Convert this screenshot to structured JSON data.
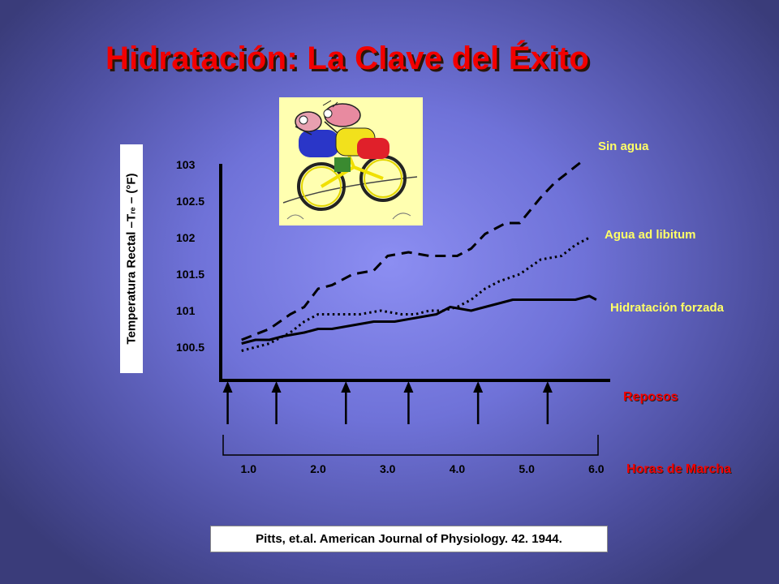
{
  "title": "Hidratación: La Clave del Éxito",
  "illustration": {
    "icon": "cyclist-illustration-icon",
    "background": "#ffffb0"
  },
  "chart_data": {
    "type": "line",
    "ylabel_main": "Temperatura Rectal –T",
    "ylabel_sub": "re",
    "ylabel_tail": " – (°F)",
    "yticks": [
      "103",
      "102.5",
      "102",
      "101.5",
      "101",
      "100.5"
    ],
    "ylim": [
      100.5,
      103
    ],
    "xticks": [
      "1.0",
      "2.0",
      "3.0",
      "4.0",
      "5.0",
      "6.0"
    ],
    "xlim": [
      0.6,
      6.2
    ],
    "xlabel": "Horas de Marcha",
    "rest_label": "Reposos",
    "rest_times": [
      0.7,
      1.4,
      2.4,
      3.3,
      4.3,
      5.3
    ],
    "grid": false,
    "series": [
      {
        "name": "Sin agua",
        "style": "dashed",
        "x": [
          0.9,
          1.3,
          1.6,
          1.8,
          2.0,
          2.2,
          2.5,
          2.8,
          3.0,
          3.3,
          3.6,
          3.8,
          4.0,
          4.2,
          4.4,
          4.7,
          4.9,
          5.2,
          5.4,
          5.6,
          5.8
        ],
        "y": [
          100.6,
          100.75,
          100.95,
          101.05,
          101.3,
          101.35,
          101.5,
          101.55,
          101.75,
          101.8,
          101.75,
          101.75,
          101.75,
          101.85,
          102.05,
          102.2,
          102.2,
          102.55,
          102.75,
          102.9,
          103.05
        ]
      },
      {
        "name": "Agua ad libitum",
        "style": "dotted",
        "x": [
          0.9,
          1.3,
          1.6,
          1.8,
          2.0,
          2.3,
          2.6,
          2.9,
          3.2,
          3.4,
          3.6,
          3.8,
          4.0,
          4.2,
          4.4,
          4.6,
          4.9,
          5.2,
          5.5,
          5.7,
          5.9
        ],
        "y": [
          100.45,
          100.55,
          100.7,
          100.85,
          100.95,
          100.95,
          100.95,
          101.0,
          100.95,
          100.95,
          101.0,
          101.0,
          101.05,
          101.15,
          101.3,
          101.4,
          101.5,
          101.7,
          101.75,
          101.9,
          102.0
        ]
      },
      {
        "name": "Hidratación forzada",
        "style": "solid",
        "x": [
          0.9,
          1.1,
          1.3,
          1.5,
          1.8,
          2.0,
          2.2,
          2.5,
          2.8,
          3.1,
          3.4,
          3.7,
          3.9,
          4.2,
          4.4,
          4.6,
          4.8,
          5.0,
          5.2,
          5.5,
          5.7,
          5.9,
          6.0
        ],
        "y": [
          100.55,
          100.6,
          100.6,
          100.65,
          100.7,
          100.75,
          100.75,
          100.8,
          100.85,
          100.85,
          100.9,
          100.95,
          101.05,
          101.0,
          101.05,
          101.1,
          101.15,
          101.15,
          101.15,
          101.15,
          101.15,
          101.2,
          101.15
        ]
      }
    ]
  },
  "citation": "Pitts, et.al. American Journal of Physiology. 42. 1944."
}
